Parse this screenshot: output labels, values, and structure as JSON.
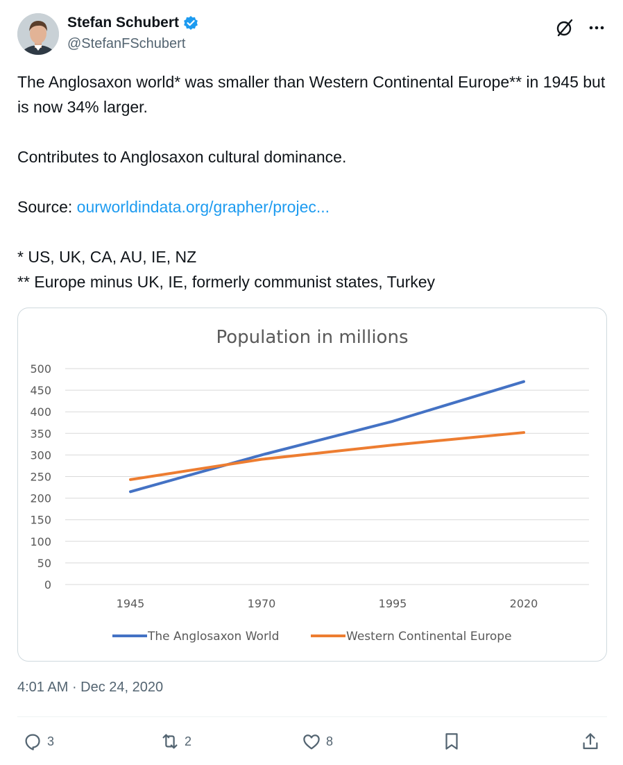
{
  "author": {
    "name": "Stefan Schubert",
    "handle": "@StefanFSchubert",
    "verified_badge_color": "#1d9bf0"
  },
  "tweet": {
    "line1": "The Anglosaxon world* was smaller than Western Continental Europe** in 1945 but is now 34% larger.",
    "line2": "Contributes to Anglosaxon cultural dominance.",
    "source_label": "Source: ",
    "source_link": "ourworldindata.org/grapher/projec...",
    "note1": "* US, UK, CA, AU, IE, NZ",
    "note2": "** Europe minus UK, IE, formerly communist states, Turkey"
  },
  "timestamp": {
    "time": "4:01 AM",
    "separator": " · ",
    "date": "Dec 24, 2020"
  },
  "actions": {
    "replies": "3",
    "reposts": "2",
    "likes": "8"
  },
  "icons": {
    "grok": "grok-icon",
    "more": "more-icon",
    "reply": "reply-icon",
    "repost": "repost-icon",
    "like": "heart-icon",
    "bookmark": "bookmark-icon",
    "share": "share-icon"
  },
  "chart_data": {
    "type": "line",
    "title": "Population in millions",
    "categories": [
      "1945",
      "1970",
      "1995",
      "2020"
    ],
    "ylim": [
      0,
      500
    ],
    "yticks": [
      0,
      50,
      100,
      150,
      200,
      250,
      300,
      350,
      400,
      450,
      500
    ],
    "grid": true,
    "legend": "bottom",
    "series": [
      {
        "name": "The Anglosaxon World",
        "color": "#4472c4",
        "values": [
          215,
          300,
          378,
          470
        ]
      },
      {
        "name": "Western Continental Europe",
        "color": "#ed7d31",
        "values": [
          243,
          290,
          323,
          352
        ]
      }
    ]
  }
}
